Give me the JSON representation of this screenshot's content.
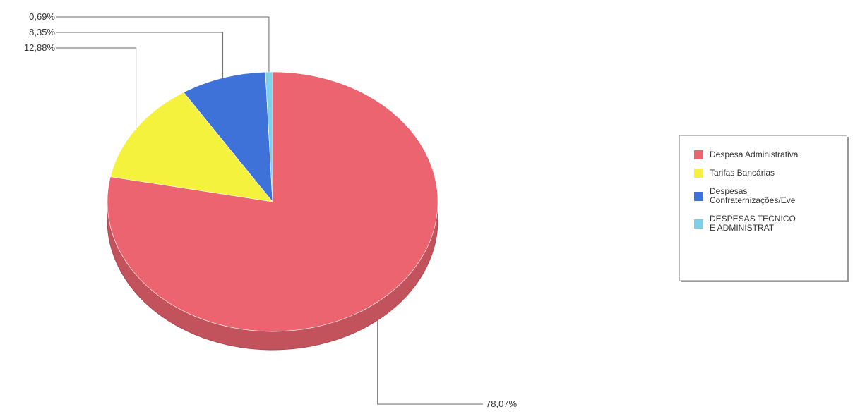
{
  "chart_data": {
    "type": "pie",
    "categories": [
      "Despesa Administrativa",
      "Tarifas Bancárias",
      "Despesas Confraternizações/Eve",
      "DESPESAS TECNICO E ADMINISTRAT"
    ],
    "values": [
      78.07,
      12.88,
      8.35,
      0.69
    ],
    "labels": [
      "78,07%",
      "12,88%",
      "8,35%",
      "0,69%"
    ],
    "colors": [
      "#ec6470",
      "#f4f23c",
      "#3e72d8",
      "#7ecfe8"
    ],
    "legend_labels": [
      "Despesa Administrativa",
      "Tarifas Bancárias",
      "Despesas\nConfraternizações/Eve",
      "DESPESAS TECNICO\nE ADMINISTRAT"
    ],
    "legend_position": "right",
    "style": "3d"
  }
}
